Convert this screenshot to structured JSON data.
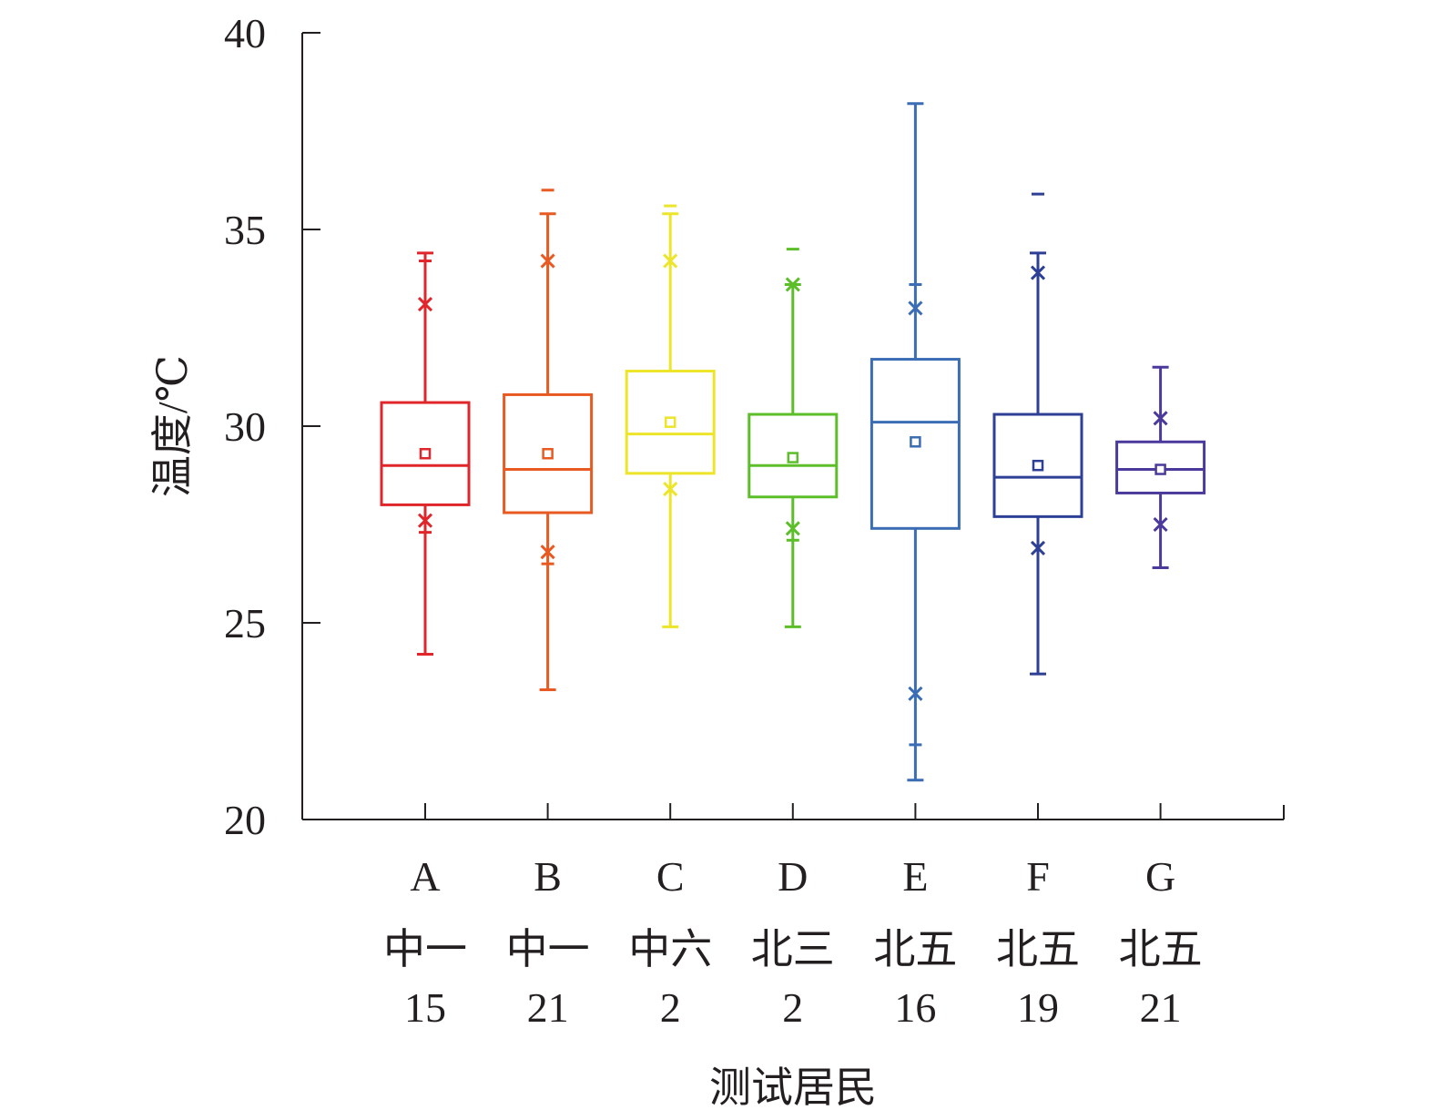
{
  "chart_data": {
    "type": "box",
    "ylabel": "温度/℃",
    "xlabel": "测试居民",
    "ylim": [
      20,
      40
    ],
    "yticks": [
      20,
      25,
      30,
      35,
      40
    ],
    "grid": false,
    "legend": "none",
    "series": [
      {
        "letter": "A",
        "line1": "中一",
        "line2": "15",
        "color": "#e0262b",
        "q1": 28.0,
        "median": 29.0,
        "q3": 30.6,
        "mean": 29.3,
        "whisker_low": 24.2,
        "whisker_high": 34.4,
        "p_low": 27.6,
        "p_high": 33.1,
        "extremes": [
          27.3,
          34.2
        ]
      },
      {
        "letter": "B",
        "line1": "中一",
        "line2": "21",
        "color": "#e95a22",
        "q1": 27.8,
        "median": 28.9,
        "q3": 30.8,
        "mean": 29.3,
        "whisker_low": 23.3,
        "whisker_high": 35.4,
        "p_low": 26.8,
        "p_high": 34.2,
        "extremes": [
          26.5,
          36.0
        ]
      },
      {
        "letter": "C",
        "line1": "中六",
        "line2": "2",
        "color": "#ede52a",
        "q1": 28.8,
        "median": 29.8,
        "q3": 31.4,
        "mean": 30.1,
        "whisker_low": 24.9,
        "whisker_high": 35.4,
        "p_low": 28.4,
        "p_high": 34.2,
        "extremes": [
          35.6
        ]
      },
      {
        "letter": "D",
        "line1": "北三",
        "line2": "2",
        "color": "#5cbf2a",
        "q1": 28.2,
        "median": 29.0,
        "q3": 30.3,
        "mean": 29.2,
        "whisker_low": 24.9,
        "whisker_high": 33.6,
        "p_low": 27.4,
        "p_high": 33.6,
        "extremes": [
          27.1,
          34.5
        ]
      },
      {
        "letter": "E",
        "line1": "北五",
        "line2": "16",
        "color": "#3a6db3",
        "q1": 27.4,
        "median": 30.1,
        "q3": 31.7,
        "mean": 29.6,
        "whisker_low": 21.0,
        "whisker_high": 38.2,
        "p_low": 23.2,
        "p_high": 33.0,
        "extremes": [
          21.9,
          33.6
        ]
      },
      {
        "letter": "F",
        "line1": "北五",
        "line2": "19",
        "color": "#2e3f96",
        "q1": 27.7,
        "median": 28.7,
        "q3": 30.3,
        "mean": 29.0,
        "whisker_low": 23.7,
        "whisker_high": 34.4,
        "p_low": 26.9,
        "p_high": 33.9,
        "extremes": [
          35.9
        ]
      },
      {
        "letter": "G",
        "line1": "北五",
        "line2": "21",
        "color": "#4b3a9b",
        "q1": 28.3,
        "median": 28.9,
        "q3": 29.6,
        "mean": 28.9,
        "whisker_low": 26.4,
        "whisker_high": 31.5,
        "p_low": 27.5,
        "p_high": 30.2,
        "extremes": []
      }
    ]
  }
}
